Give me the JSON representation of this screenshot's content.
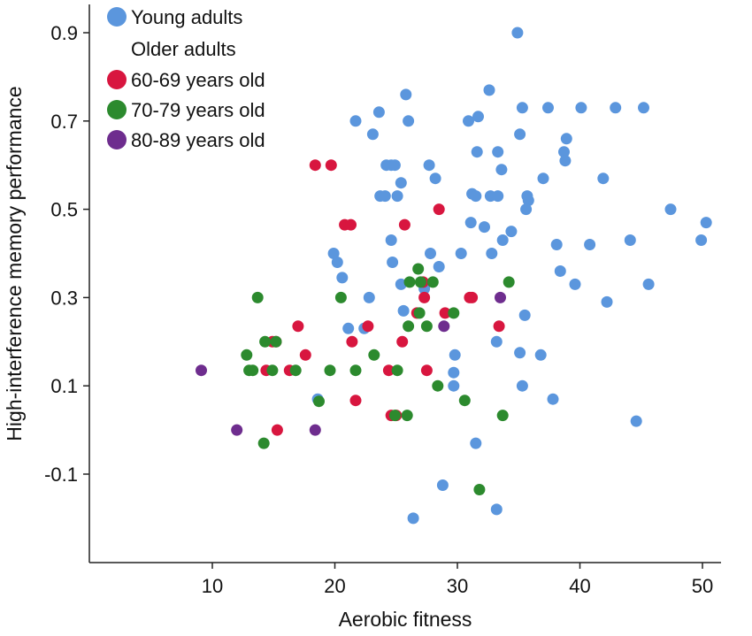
{
  "chart_data": {
    "type": "scatter",
    "xlabel": "Aerobic fitness",
    "ylabel": "High-interference memory performance",
    "xlim": [
      0,
      52.5
    ],
    "ylim": [
      -0.27,
      0.95
    ],
    "xticks": [
      10,
      20,
      30,
      40,
      50
    ],
    "yticks": [
      -0.1,
      0.1,
      0.3,
      0.5,
      0.7,
      0.9
    ],
    "xtick_labels": [
      "10",
      "20",
      "30",
      "40",
      "50"
    ],
    "ytick_labels": [
      "-0.1",
      "0.1",
      "0.3",
      "0.5",
      "0.7",
      "0.9"
    ],
    "legend": {
      "placement": "top-left",
      "group_heading": "Older adults"
    },
    "series": [
      {
        "name": "Young adults",
        "color": "#5b96dd",
        "points": [
          [
            34.9,
            0.9
          ],
          [
            25.8,
            0.76
          ],
          [
            32.6,
            0.77
          ],
          [
            21.7,
            0.7
          ],
          [
            23.6,
            0.72
          ],
          [
            26.0,
            0.7
          ],
          [
            23.1,
            0.67
          ],
          [
            30.9,
            0.7
          ],
          [
            31.7,
            0.71
          ],
          [
            35.3,
            0.73
          ],
          [
            37.4,
            0.73
          ],
          [
            40.1,
            0.73
          ],
          [
            42.9,
            0.73
          ],
          [
            45.2,
            0.73
          ],
          [
            35.1,
            0.67
          ],
          [
            38.9,
            0.66
          ],
          [
            33.3,
            0.63
          ],
          [
            31.6,
            0.63
          ],
          [
            38.7,
            0.63
          ],
          [
            38.8,
            0.61
          ],
          [
            24.2,
            0.6
          ],
          [
            24.6,
            0.6
          ],
          [
            24.9,
            0.6
          ],
          [
            27.7,
            0.6
          ],
          [
            33.6,
            0.59
          ],
          [
            28.2,
            0.57
          ],
          [
            37.0,
            0.57
          ],
          [
            41.9,
            0.57
          ],
          [
            25.4,
            0.56
          ],
          [
            23.7,
            0.53
          ],
          [
            24.1,
            0.53
          ],
          [
            25.1,
            0.53
          ],
          [
            31.2,
            0.535
          ],
          [
            31.5,
            0.53
          ],
          [
            32.7,
            0.53
          ],
          [
            33.3,
            0.53
          ],
          [
            35.7,
            0.53
          ],
          [
            35.8,
            0.52
          ],
          [
            35.6,
            0.5
          ],
          [
            47.4,
            0.5
          ],
          [
            50.3,
            0.47
          ],
          [
            31.1,
            0.47
          ],
          [
            32.2,
            0.46
          ],
          [
            34.4,
            0.45
          ],
          [
            24.6,
            0.43
          ],
          [
            33.7,
            0.43
          ],
          [
            44.1,
            0.43
          ],
          [
            49.9,
            0.43
          ],
          [
            38.1,
            0.42
          ],
          [
            40.8,
            0.42
          ],
          [
            19.9,
            0.4
          ],
          [
            27.8,
            0.4
          ],
          [
            30.3,
            0.4
          ],
          [
            32.8,
            0.4
          ],
          [
            20.2,
            0.38
          ],
          [
            24.7,
            0.38
          ],
          [
            28.5,
            0.37
          ],
          [
            38.4,
            0.36
          ],
          [
            20.6,
            0.345
          ],
          [
            25.4,
            0.33
          ],
          [
            27.3,
            0.32
          ],
          [
            39.6,
            0.33
          ],
          [
            45.6,
            0.33
          ],
          [
            22.8,
            0.3
          ],
          [
            42.2,
            0.29
          ],
          [
            25.6,
            0.27
          ],
          [
            35.5,
            0.26
          ],
          [
            21.1,
            0.23
          ],
          [
            22.4,
            0.23
          ],
          [
            33.2,
            0.2
          ],
          [
            29.8,
            0.17
          ],
          [
            35.1,
            0.175
          ],
          [
            36.8,
            0.17
          ],
          [
            29.7,
            0.13
          ],
          [
            29.7,
            0.1
          ],
          [
            35.3,
            0.1
          ],
          [
            18.6,
            0.07
          ],
          [
            37.8,
            0.07
          ],
          [
            44.6,
            0.02
          ],
          [
            31.5,
            -0.03
          ],
          [
            28.8,
            -0.125
          ],
          [
            33.2,
            -0.18
          ],
          [
            26.4,
            -0.2
          ]
        ]
      },
      {
        "name": "60-69 years old",
        "color": "#d8163f",
        "points": [
          [
            18.4,
            0.6
          ],
          [
            19.7,
            0.6
          ],
          [
            20.8,
            0.465
          ],
          [
            21.3,
            0.465
          ],
          [
            25.7,
            0.465
          ],
          [
            28.5,
            0.5
          ],
          [
            27.2,
            0.335
          ],
          [
            27.3,
            0.3
          ],
          [
            31.0,
            0.3
          ],
          [
            31.2,
            0.3
          ],
          [
            26.7,
            0.265
          ],
          [
            29.0,
            0.265
          ],
          [
            17.0,
            0.235
          ],
          [
            22.7,
            0.235
          ],
          [
            33.4,
            0.235
          ],
          [
            14.9,
            0.2
          ],
          [
            15.2,
            0.2
          ],
          [
            21.4,
            0.2
          ],
          [
            25.5,
            0.2
          ],
          [
            17.6,
            0.17
          ],
          [
            14.4,
            0.135
          ],
          [
            16.3,
            0.135
          ],
          [
            24.4,
            0.135
          ],
          [
            27.5,
            0.135
          ],
          [
            21.7,
            0.067
          ],
          [
            24.6,
            0.033
          ],
          [
            25.0,
            0.033
          ],
          [
            15.3,
            0.0
          ]
        ]
      },
      {
        "name": "70-79 years old",
        "color": "#2c8a2e",
        "points": [
          [
            26.8,
            0.365
          ],
          [
            13.7,
            0.3
          ],
          [
            20.5,
            0.3
          ],
          [
            26.1,
            0.335
          ],
          [
            27.0,
            0.335
          ],
          [
            28.0,
            0.335
          ],
          [
            34.2,
            0.335
          ],
          [
            26.9,
            0.265
          ],
          [
            29.7,
            0.265
          ],
          [
            14.3,
            0.2
          ],
          [
            15.2,
            0.2
          ],
          [
            26.0,
            0.235
          ],
          [
            27.5,
            0.235
          ],
          [
            12.8,
            0.17
          ],
          [
            23.2,
            0.17
          ],
          [
            13.0,
            0.135
          ],
          [
            13.3,
            0.135
          ],
          [
            14.9,
            0.135
          ],
          [
            16.8,
            0.135
          ],
          [
            19.6,
            0.135
          ],
          [
            21.7,
            0.135
          ],
          [
            25.1,
            0.135
          ],
          [
            28.4,
            0.1
          ],
          [
            18.7,
            0.065
          ],
          [
            30.6,
            0.067
          ],
          [
            24.9,
            0.033
          ],
          [
            25.9,
            0.033
          ],
          [
            33.7,
            0.033
          ],
          [
            14.2,
            -0.03
          ],
          [
            31.8,
            -0.135
          ]
        ]
      },
      {
        "name": "80-89 years old",
        "color": "#6e2d8e",
        "points": [
          [
            33.5,
            0.3
          ],
          [
            28.9,
            0.235
          ],
          [
            9.1,
            0.135
          ],
          [
            12.0,
            0.0
          ],
          [
            18.4,
            0.0
          ]
        ]
      }
    ]
  }
}
